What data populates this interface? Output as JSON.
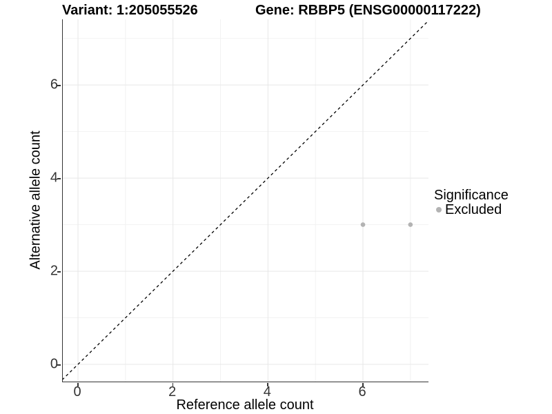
{
  "titles": {
    "left": "Variant: 1:205055526",
    "right": "Gene: RBBP5 (ENSG00000117222)"
  },
  "chart_data": {
    "type": "scatter",
    "title_left": "Variant: 1:205055526",
    "title_right": "Gene: RBBP5 (ENSG00000117222)",
    "xlabel": "Reference allele count",
    "ylabel": "Alternative allele count",
    "xlim": [
      -0.32,
      7.38
    ],
    "ylim": [
      -0.37,
      7.41
    ],
    "x_ticks": [
      0,
      2,
      4,
      6
    ],
    "x_tick_labels": [
      "0",
      "2",
      "4",
      "6"
    ],
    "y_ticks": [
      0,
      2,
      4,
      6
    ],
    "y_tick_labels": [
      "0",
      "2",
      "4",
      "6"
    ],
    "x_minor_ticks": [
      1,
      3,
      5,
      7
    ],
    "y_minor_ticks": [
      1,
      3,
      5,
      7
    ],
    "grid": true,
    "series": [
      {
        "name": "Excluded",
        "color": "#b3b3b3",
        "points": [
          [
            6,
            3
          ],
          [
            7,
            3
          ]
        ]
      }
    ],
    "reference_line": {
      "kind": "identity y=x",
      "from": -0.5,
      "to": 8,
      "color": "#000000",
      "dash": "4 4"
    },
    "legend": {
      "title": "Significance",
      "position": "right-center",
      "items": [
        {
          "label": "Excluded",
          "color": "#b3b3b3"
        }
      ]
    }
  },
  "colors": {
    "axis": "#333333",
    "tick_text": "#333333",
    "title_text": "#000000",
    "grid_major": "#e7e7e7",
    "grid_minor": "#f2f2f2",
    "point": "#b3b3b3",
    "background": "#ffffff"
  }
}
